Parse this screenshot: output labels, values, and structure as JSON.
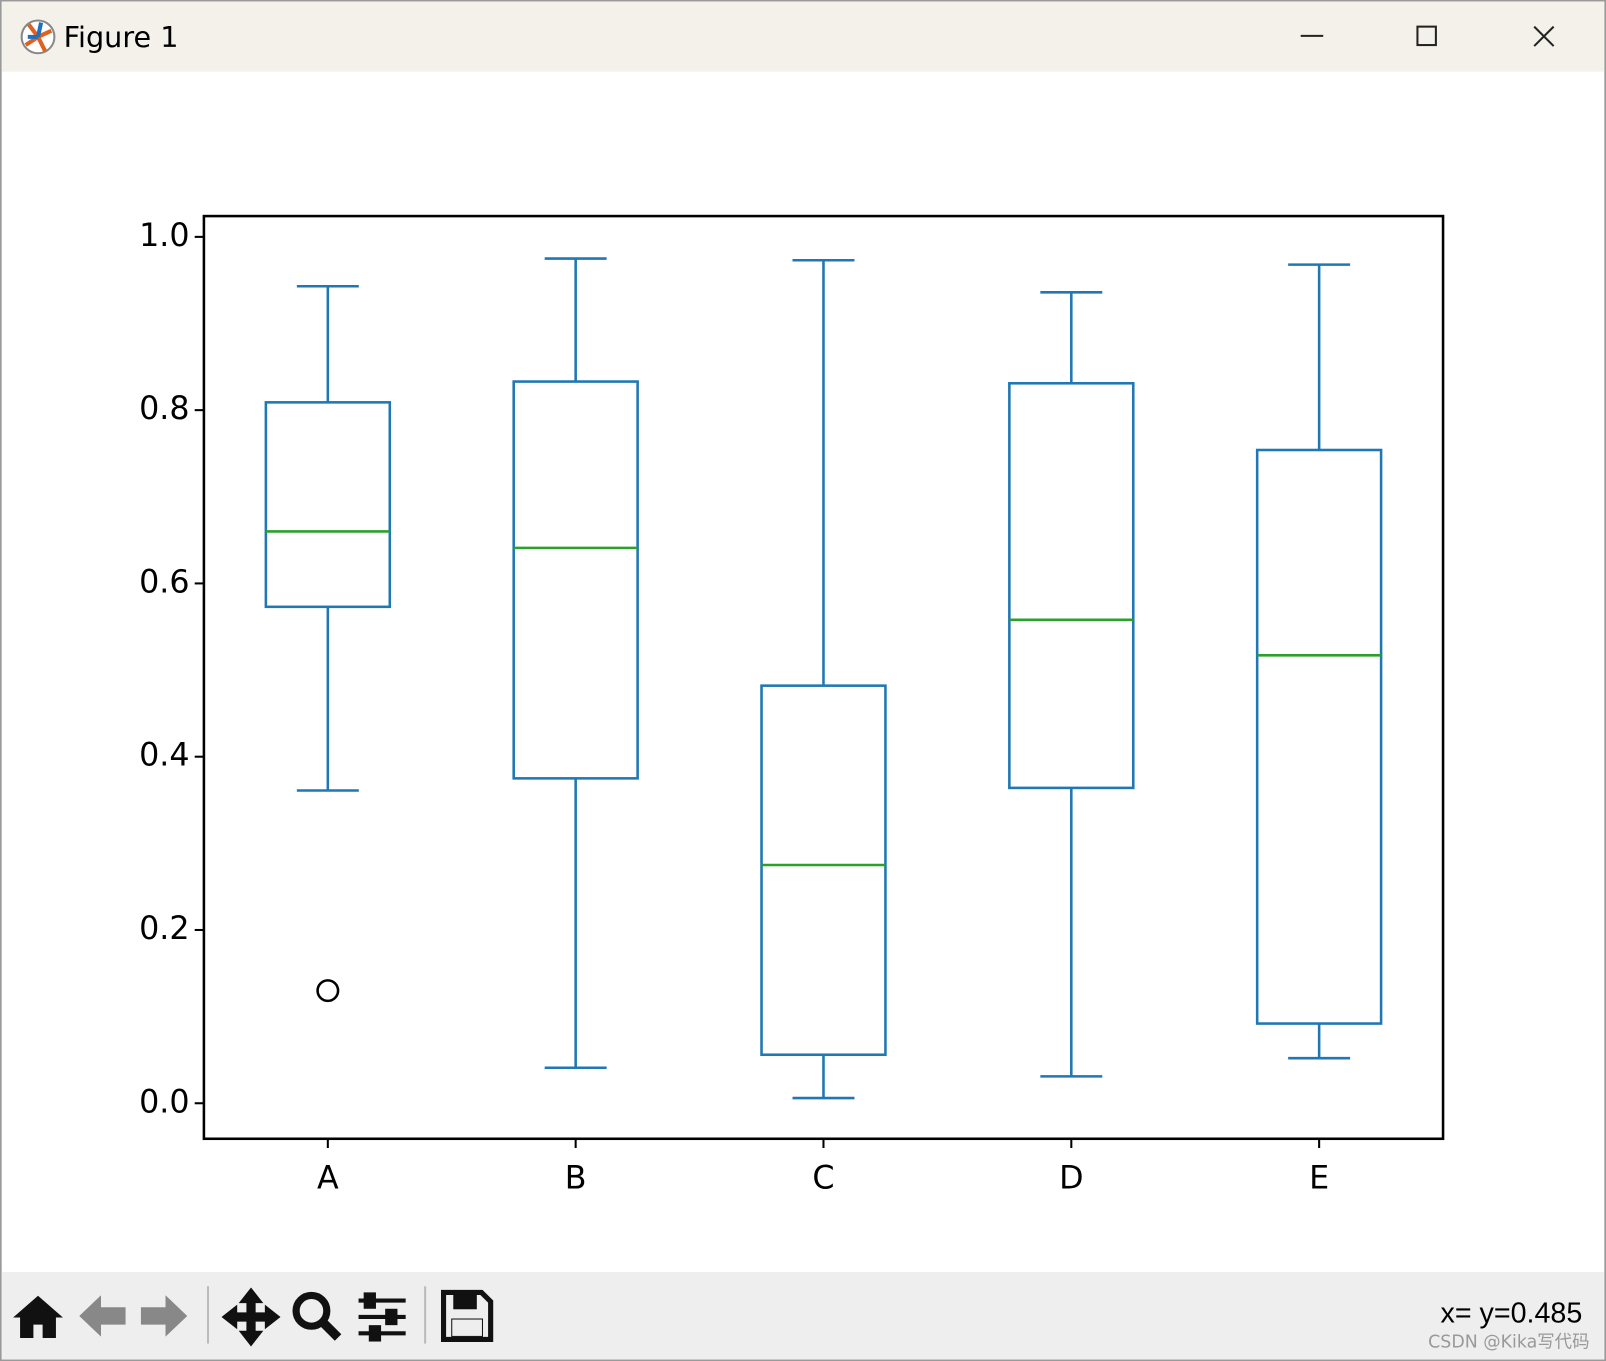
{
  "window": {
    "title": "Figure 1",
    "status": "x= y=0.485",
    "watermark": "CSDN @Kika写代码"
  },
  "chart_data": {
    "type": "box",
    "categories": [
      "A",
      "B",
      "C",
      "D",
      "E"
    ],
    "boxes": [
      {
        "whislo": 0.361,
        "q1": 0.573,
        "median": 0.66,
        "q3": 0.809,
        "whishi": 0.943,
        "fliers": [
          0.13
        ]
      },
      {
        "whislo": 0.041,
        "q1": 0.375,
        "median": 0.641,
        "q3": 0.833,
        "whishi": 0.975,
        "fliers": []
      },
      {
        "whislo": 0.006,
        "q1": 0.056,
        "median": 0.275,
        "q3": 0.482,
        "whishi": 0.973,
        "fliers": []
      },
      {
        "whislo": 0.031,
        "q1": 0.364,
        "median": 0.558,
        "q3": 0.831,
        "whishi": 0.936,
        "fliers": []
      },
      {
        "whislo": 0.052,
        "q1": 0.092,
        "median": 0.517,
        "q3": 0.754,
        "whishi": 0.968,
        "fliers": []
      }
    ],
    "color": "#1f77b4",
    "median_color": "#2ca02c",
    "flier_color": "#000000",
    "ylim": [
      -0.041,
      1.024
    ],
    "yticks": [
      {
        "value": 0,
        "label": "0.0"
      },
      0.2,
      0.4,
      0.6,
      0.8,
      {
        "value": 1,
        "label": "1.0"
      }
    ]
  }
}
